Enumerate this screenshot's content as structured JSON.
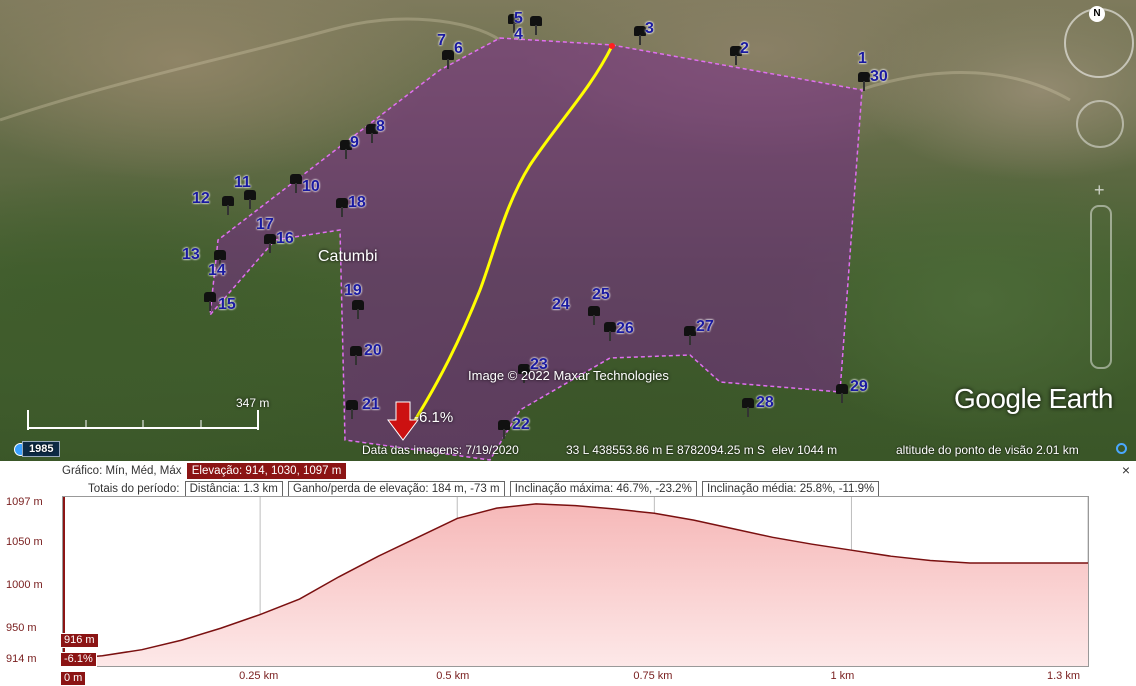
{
  "map": {
    "place_label": "Catumbi",
    "copyright": "Image © 2022 Maxar Technologies",
    "logo": "Google Earth",
    "compass_label": "N",
    "scale_label": "347 m",
    "marker_percent": "-6.1%",
    "pins": [
      "1",
      "2",
      "3",
      "4",
      "5",
      "6",
      "7",
      "8",
      "9",
      "10",
      "11",
      "12",
      "13",
      "14",
      "15",
      "16",
      "17",
      "18",
      "19",
      "20",
      "21",
      "22",
      "23",
      "24",
      "25",
      "26",
      "27",
      "28",
      "29",
      "30"
    ],
    "colors": {
      "polygon_fill": "#7a2a8a",
      "polygon_edge": "#e070f0",
      "path": "#ffff00",
      "marker": "#cc1111"
    },
    "icons": [
      "compass-icon",
      "look-control-icon",
      "zoom-slider-icon",
      "pushpin-icon",
      "historical-imagery-icon"
    ]
  },
  "statusbar": {
    "year": "1985",
    "imagery_date": "Data das imagens: 7/19/2020",
    "coordinates": "33 L 438553.86 m E 8782094.25 m S",
    "elev": "elev  1044 m",
    "eye_altitude": "altitude do ponto de visão   2.01 km"
  },
  "profile": {
    "close_label": "×",
    "graph_label": "Gráfico: Mín, Méd, Máx",
    "elevation_stat": "Elevação: 914, 1030, 1097 m",
    "totals_label": "Totais do período:",
    "distance_stat": "Distância: 1.3 km",
    "gain_stat": "Ganho/perda de elevação: 184 m, -73 m",
    "max_slope_stat": "Inclinação máxima: 46.7%, -23.2%",
    "avg_slope_stat": "Inclinação média: 25.8%, -11.9%",
    "cursor_elevation": "916 m",
    "cursor_slope": "-6.1%",
    "cursor_distance": "0 m"
  },
  "chart_data": {
    "type": "area",
    "xlabel": "",
    "ylabel": "",
    "x_unit": "km",
    "y_unit": "m",
    "xlim": [
      0,
      1.3
    ],
    "ylim": [
      908,
      1105
    ],
    "y_ticks": [
      {
        "value": 1097,
        "label": "1097 m"
      },
      {
        "value": 1050,
        "label": "1050 m"
      },
      {
        "value": 1000,
        "label": "1000 m"
      },
      {
        "value": 950,
        "label": "950 m"
      },
      {
        "value": 914,
        "label": "914 m"
      }
    ],
    "x_ticks": [
      {
        "value": 0.25,
        "label": "0.25 km"
      },
      {
        "value": 0.5,
        "label": "0.5 km"
      },
      {
        "value": 0.75,
        "label": "0.75 km"
      },
      {
        "value": 1,
        "label": "1 km"
      },
      {
        "value": 1.3,
        "label": "1.3 km"
      }
    ],
    "x": [
      0,
      0.05,
      0.1,
      0.15,
      0.2,
      0.25,
      0.3,
      0.35,
      0.4,
      0.45,
      0.5,
      0.55,
      0.6,
      0.65,
      0.7,
      0.75,
      0.8,
      0.85,
      0.9,
      0.95,
      1.0,
      1.05,
      1.1,
      1.15,
      1.2,
      1.25,
      1.3
    ],
    "y": [
      916,
      920,
      927,
      938,
      952,
      968,
      986,
      1012,
      1036,
      1058,
      1080,
      1092,
      1097,
      1095,
      1091,
      1086,
      1078,
      1068,
      1058,
      1050,
      1043,
      1036,
      1031,
      1028,
      1028,
      1028,
      1028
    ],
    "grid": true,
    "colors": {
      "line": "#7a1010",
      "fill_top": "#f6b8b8",
      "fill_bottom": "#fde8e8"
    }
  }
}
